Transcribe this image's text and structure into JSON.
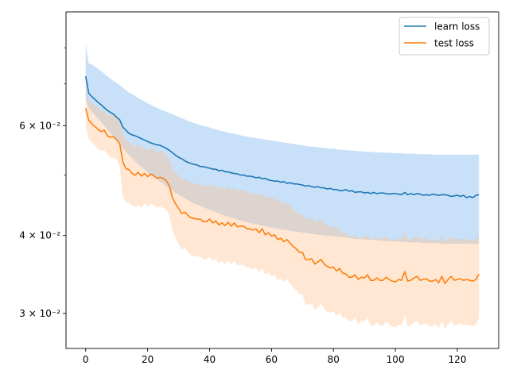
{
  "chart_data": {
    "type": "line",
    "title": "",
    "xlabel": "",
    "ylabel": "",
    "yscale": "log",
    "xlim": [
      -6.35,
      133.35
    ],
    "ylim": [
      0.02636,
      0.09132
    ],
    "xticks": [
      0,
      20,
      40,
      60,
      80,
      100,
      120
    ],
    "xtick_labels": [
      "0",
      "20",
      "40",
      "60",
      "80",
      "100",
      "120"
    ],
    "yticks": [
      0.03,
      0.04,
      0.06
    ],
    "ytick_labels": [
      "3 × 10⁻²",
      "4 × 10⁻²",
      "6 × 10⁻²"
    ],
    "y_minor_ticks": [
      0.05,
      0.07,
      0.08
    ],
    "grid": false,
    "legend_position": "top-right",
    "colors": {
      "learn_line": "#1f77b4",
      "learn_band": "#6fb0f0",
      "test_line": "#ff7f0e",
      "test_band": "#ffbf8c"
    },
    "series": [
      {
        "name": "learn loss",
        "x_start": 0,
        "x_step": 1,
        "mean": [
          0.072,
          0.0676,
          0.0668,
          0.0661,
          0.0654,
          0.0648,
          0.0641,
          0.0635,
          0.063,
          0.0626,
          0.0619,
          0.0613,
          0.0597,
          0.059,
          0.0583,
          0.058,
          0.0578,
          0.0575,
          0.0572,
          0.0569,
          0.0566,
          0.0563,
          0.0561,
          0.0559,
          0.0558,
          0.0555,
          0.0552,
          0.0548,
          0.0543,
          0.0538,
          0.0534,
          0.0531,
          0.0527,
          0.0524,
          0.0522,
          0.052,
          0.0519,
          0.0516,
          0.0516,
          0.0514,
          0.0513,
          0.0511,
          0.0511,
          0.0508,
          0.0509,
          0.0506,
          0.0506,
          0.0504,
          0.0503,
          0.0502,
          0.05,
          0.05,
          0.0498,
          0.0498,
          0.0497,
          0.0495,
          0.0496,
          0.0493,
          0.0494,
          0.0491,
          0.049,
          0.0489,
          0.0489,
          0.0487,
          0.0488,
          0.0485,
          0.0486,
          0.0484,
          0.0484,
          0.0483,
          0.0482,
          0.048,
          0.0481,
          0.0479,
          0.0478,
          0.0479,
          0.0477,
          0.0477,
          0.0475,
          0.0476,
          0.0474,
          0.0474,
          0.0472,
          0.0472,
          0.0474,
          0.0471,
          0.0472,
          0.0469,
          0.047,
          0.047,
          0.0468,
          0.0469,
          0.0467,
          0.0469,
          0.0467,
          0.0468,
          0.0468,
          0.0467,
          0.0466,
          0.0467,
          0.0467,
          0.0466,
          0.0465,
          0.0469,
          0.0465,
          0.0467,
          0.0465,
          0.0467,
          0.0466,
          0.0464,
          0.0465,
          0.0464,
          0.0466,
          0.0465,
          0.0464,
          0.0465,
          0.0465,
          0.0464,
          0.0462,
          0.0463,
          0.0464,
          0.0462,
          0.0464,
          0.046,
          0.0462,
          0.046,
          0.0464,
          0.0465
        ],
        "upper": [
          0.081,
          0.0755,
          0.0752,
          0.0746,
          0.074,
          0.0734,
          0.0727,
          0.072,
          0.0714,
          0.0708,
          0.0702,
          0.0697,
          0.069,
          0.0684,
          0.0678,
          0.0674,
          0.0669,
          0.0664,
          0.066,
          0.0656,
          0.0652,
          0.0648,
          0.0644,
          0.0641,
          0.0638,
          0.0634,
          0.0632,
          0.0629,
          0.0626,
          0.0623,
          0.062,
          0.0617,
          0.0614,
          0.0611,
          0.0608,
          0.0606,
          0.0604,
          0.0601,
          0.06,
          0.0598,
          0.0596,
          0.0594,
          0.0592,
          0.059,
          0.0588,
          0.0587,
          0.0585,
          0.0583,
          0.0582,
          0.0581,
          0.0579,
          0.0578,
          0.0576,
          0.0575,
          0.0574,
          0.0573,
          0.0572,
          0.0571,
          0.057,
          0.0569,
          0.0568,
          0.0567,
          0.0566,
          0.0565,
          0.0564,
          0.0563,
          0.0562,
          0.0561,
          0.056,
          0.0559,
          0.0558,
          0.0557,
          0.0556,
          0.0555,
          0.0555,
          0.0554,
          0.0553,
          0.0553,
          0.0552,
          0.0551,
          0.0551,
          0.055,
          0.0549,
          0.0549,
          0.0548,
          0.0548,
          0.0547,
          0.0547,
          0.0546,
          0.0546,
          0.0545,
          0.0545,
          0.0545,
          0.0544,
          0.0544,
          0.0544,
          0.0543,
          0.0543,
          0.0543,
          0.0542,
          0.0542,
          0.0542,
          0.0542,
          0.0541,
          0.0541,
          0.0541,
          0.0541,
          0.054,
          0.054,
          0.054,
          0.054,
          0.054,
          0.0539,
          0.0539,
          0.0539,
          0.0539,
          0.0539,
          0.0539,
          0.0539,
          0.0539,
          0.0539,
          0.0539,
          0.0539,
          0.0539,
          0.0539,
          0.0539,
          0.0539,
          0.0539
        ],
        "lower": [
          0.066,
          0.064,
          0.0632,
          0.0624,
          0.0616,
          0.0608,
          0.06,
          0.0592,
          0.0584,
          0.0576,
          0.0568,
          0.056,
          0.0552,
          0.0545,
          0.0538,
          0.0532,
          0.0526,
          0.052,
          0.0515,
          0.051,
          0.0505,
          0.05,
          0.0496,
          0.0492,
          0.0488,
          0.0484,
          0.048,
          0.0476,
          0.0472,
          0.0468,
          0.0465,
          0.0462,
          0.0459,
          0.0456,
          0.0453,
          0.045,
          0.0448,
          0.0446,
          0.0444,
          0.0442,
          0.044,
          0.0438,
          0.0436,
          0.0434,
          0.0432,
          0.043,
          0.0429,
          0.0427,
          0.0426,
          0.0424,
          0.0423,
          0.0421,
          0.042,
          0.0419,
          0.0418,
          0.0417,
          0.0416,
          0.0415,
          0.0414,
          0.0413,
          0.0412,
          0.0411,
          0.041,
          0.0409,
          0.0409,
          0.0408,
          0.0407,
          0.0406,
          0.0406,
          0.0405,
          0.0404,
          0.0404,
          0.0403,
          0.0402,
          0.0402,
          0.0401,
          0.0401,
          0.04,
          0.04,
          0.0399,
          0.0399,
          0.0398,
          0.0398,
          0.0397,
          0.0397,
          0.0396,
          0.0396,
          0.0395,
          0.0395,
          0.0395,
          0.0394,
          0.0394,
          0.0394,
          0.0393,
          0.0393,
          0.0393,
          0.0392,
          0.0392,
          0.0392,
          0.0392,
          0.0391,
          0.0391,
          0.0391,
          0.0391,
          0.039,
          0.039,
          0.039,
          0.039,
          0.039,
          0.0389,
          0.0389,
          0.0389,
          0.0389,
          0.0389,
          0.0389,
          0.0388,
          0.0388,
          0.0388,
          0.0388,
          0.0388,
          0.0388,
          0.0388,
          0.0388,
          0.0388,
          0.0388,
          0.0388,
          0.0388,
          0.0388
        ]
      },
      {
        "name": "test loss",
        "x_start": 0,
        "x_step": 1,
        "mean": [
          0.064,
          0.0612,
          0.0604,
          0.0598,
          0.0592,
          0.0587,
          0.059,
          0.0578,
          0.0575,
          0.0576,
          0.057,
          0.0561,
          0.0525,
          0.0512,
          0.051,
          0.0503,
          0.05,
          0.0505,
          0.0498,
          0.0503,
          0.0497,
          0.0502,
          0.0499,
          0.0494,
          0.0496,
          0.0494,
          0.049,
          0.0481,
          0.046,
          0.045,
          0.0442,
          0.0434,
          0.0436,
          0.0431,
          0.0427,
          0.0426,
          0.0425,
          0.0425,
          0.0421,
          0.0421,
          0.0425,
          0.0419,
          0.0422,
          0.0416,
          0.0419,
          0.0415,
          0.042,
          0.0414,
          0.0419,
          0.0413,
          0.0414,
          0.0414,
          0.041,
          0.041,
          0.0408,
          0.041,
          0.0404,
          0.041,
          0.0401,
          0.0404,
          0.0399,
          0.0401,
          0.0394,
          0.0396,
          0.0391,
          0.0394,
          0.0389,
          0.0384,
          0.0381,
          0.0376,
          0.0376,
          0.0366,
          0.0366,
          0.0367,
          0.036,
          0.0363,
          0.0366,
          0.036,
          0.0357,
          0.0355,
          0.0356,
          0.0351,
          0.0354,
          0.0348,
          0.0347,
          0.0343,
          0.0343,
          0.0346,
          0.034,
          0.0343,
          0.0342,
          0.0346,
          0.0339,
          0.0339,
          0.0342,
          0.0339,
          0.0339,
          0.0343,
          0.034,
          0.0338,
          0.0337,
          0.034,
          0.0339,
          0.035,
          0.0338,
          0.0339,
          0.0342,
          0.0344,
          0.0339,
          0.034,
          0.0341,
          0.0338,
          0.0338,
          0.034,
          0.0336,
          0.0344,
          0.0335,
          0.034,
          0.0344,
          0.0339,
          0.034,
          0.0341,
          0.0339,
          0.034,
          0.0339,
          0.0338,
          0.034,
          0.0347
        ],
        "upper": [
          0.069,
          0.0658,
          0.0652,
          0.0647,
          0.0643,
          0.0632,
          0.0637,
          0.0622,
          0.0625,
          0.0625,
          0.0617,
          0.0615,
          0.0585,
          0.057,
          0.0566,
          0.0558,
          0.0556,
          0.056,
          0.0552,
          0.0555,
          0.0547,
          0.0552,
          0.055,
          0.0544,
          0.0547,
          0.0544,
          0.054,
          0.053,
          0.0514,
          0.0506,
          0.0499,
          0.0492,
          0.0494,
          0.0489,
          0.0486,
          0.0485,
          0.0484,
          0.0484,
          0.048,
          0.048,
          0.0484,
          0.0478,
          0.0481,
          0.0475,
          0.0478,
          0.0474,
          0.0479,
          0.0473,
          0.0478,
          0.0472,
          0.0473,
          0.0473,
          0.0469,
          0.0469,
          0.0467,
          0.0469,
          0.0462,
          0.0468,
          0.046,
          0.0463,
          0.0458,
          0.046,
          0.0453,
          0.0455,
          0.0449,
          0.0451,
          0.0446,
          0.0441,
          0.0437,
          0.0432,
          0.0432,
          0.0426,
          0.0426,
          0.0427,
          0.042,
          0.0423,
          0.0425,
          0.0419,
          0.0416,
          0.0413,
          0.0414,
          0.0409,
          0.0411,
          0.0405,
          0.0403,
          0.0399,
          0.0398,
          0.0401,
          0.0396,
          0.0398,
          0.0397,
          0.0401,
          0.0395,
          0.0395,
          0.0398,
          0.0395,
          0.0395,
          0.0399,
          0.0396,
          0.0394,
          0.0393,
          0.0396,
          0.0395,
          0.0406,
          0.0394,
          0.0395,
          0.0397,
          0.04,
          0.0395,
          0.0396,
          0.0396,
          0.0393,
          0.0393,
          0.0395,
          0.0391,
          0.04,
          0.0391,
          0.0395,
          0.0399,
          0.0394,
          0.0395,
          0.0396,
          0.0394,
          0.0395,
          0.0394,
          0.0393,
          0.0395,
          0.0402
        ],
        "lower": [
          0.06,
          0.057,
          0.0565,
          0.0557,
          0.055,
          0.0546,
          0.0548,
          0.054,
          0.0532,
          0.0533,
          0.0529,
          0.0515,
          0.0462,
          0.0452,
          0.0452,
          0.0447,
          0.0444,
          0.0448,
          0.0443,
          0.045,
          0.0445,
          0.045,
          0.0448,
          0.0443,
          0.0445,
          0.0443,
          0.044,
          0.0431,
          0.0408,
          0.0396,
          0.0388,
          0.038,
          0.0382,
          0.0377,
          0.0372,
          0.0371,
          0.037,
          0.037,
          0.0366,
          0.0366,
          0.037,
          0.0364,
          0.0367,
          0.0361,
          0.0364,
          0.036,
          0.0365,
          0.0359,
          0.0364,
          0.0358,
          0.0359,
          0.0359,
          0.0355,
          0.0355,
          0.0353,
          0.0355,
          0.0349,
          0.0355,
          0.0346,
          0.0349,
          0.0344,
          0.0346,
          0.0339,
          0.0341,
          0.0337,
          0.034,
          0.0335,
          0.033,
          0.0327,
          0.0322,
          0.0322,
          0.031,
          0.031,
          0.0311,
          0.0304,
          0.0307,
          0.0311,
          0.0305,
          0.0302,
          0.0301,
          0.0302,
          0.0297,
          0.0301,
          0.0295,
          0.0295,
          0.0291,
          0.0292,
          0.0295,
          0.0288,
          0.0292,
          0.0291,
          0.0295,
          0.0287,
          0.0287,
          0.029,
          0.0287,
          0.0287,
          0.0291,
          0.0288,
          0.0286,
          0.0285,
          0.0288,
          0.0287,
          0.0298,
          0.0286,
          0.0287,
          0.0291,
          0.0292,
          0.0287,
          0.0288,
          0.0289,
          0.0286,
          0.0286,
          0.0288,
          0.0284,
          0.0292,
          0.0283,
          0.0288,
          0.0292,
          0.0287,
          0.0288,
          0.0289,
          0.0287,
          0.0288,
          0.0287,
          0.0286,
          0.0288,
          0.0295
        ]
      }
    ]
  }
}
